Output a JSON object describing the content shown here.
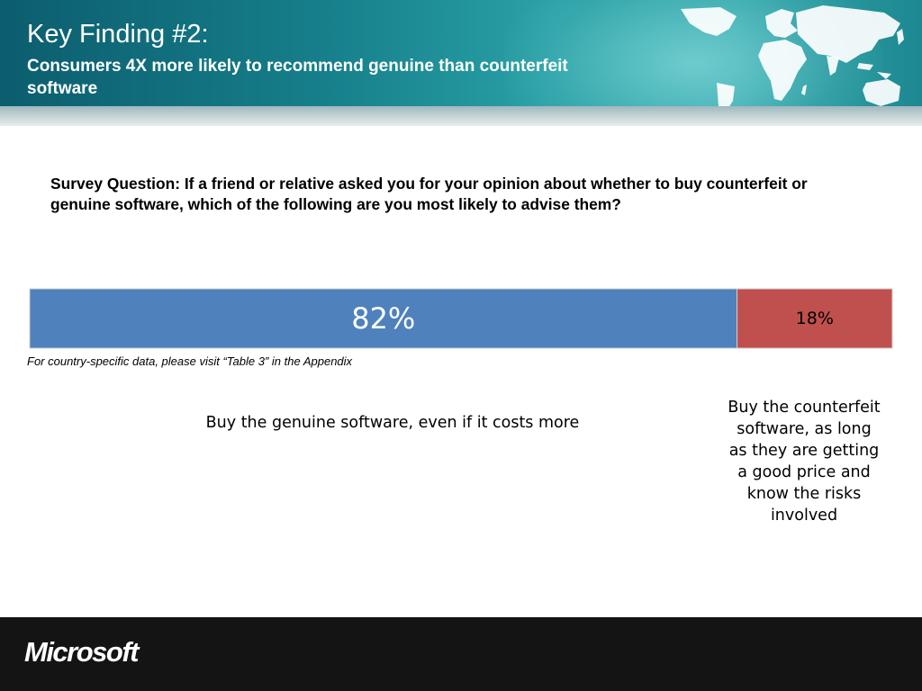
{
  "header": {
    "title": "Key Finding #2:",
    "subtitle": "Consumers 4X more likely to recommend  genuine than counterfeit software"
  },
  "question": "Survey Question: If a friend or relative asked you for your opinion about whether to buy counterfeit or genuine software, which of the following are you most likely to advise them?",
  "note": "For country-specific data, please visit “Table 3” in the Appendix",
  "chart_data": {
    "type": "bar",
    "orientation": "horizontal-stacked-100",
    "categories": [
      "Buy the genuine software, even if it costs more",
      "Buy the counterfeit software, as long as they are getting a good price and know the risks involved"
    ],
    "values": [
      82,
      18
    ],
    "data_labels": [
      "82%",
      "18%"
    ],
    "colors": [
      "#4f81bd",
      "#c0504d"
    ],
    "xlim": [
      0,
      100
    ],
    "grid": false,
    "legend": "none"
  },
  "footer": {
    "logo_text": "Microsoft"
  }
}
